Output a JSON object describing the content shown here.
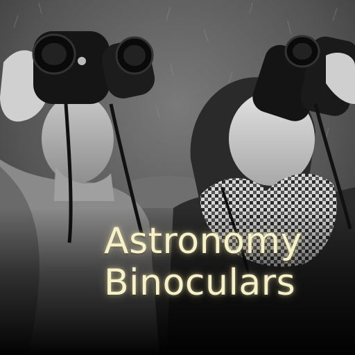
{
  "image": {
    "title_lines": [
      "Astronomy",
      "Binoculars"
    ],
    "subjects": [
      "person-left",
      "person-right"
    ],
    "palette": {
      "title_text": "#f6f1c8",
      "background_grass": "#6a6a6a",
      "shadow_bottom": "#050505"
    }
  }
}
